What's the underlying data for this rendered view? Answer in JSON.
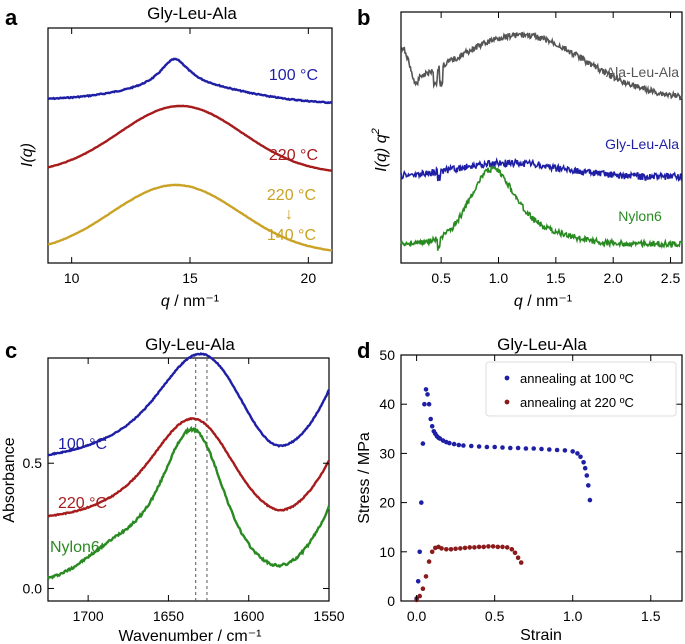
{
  "figure": {
    "panels": [
      "a",
      "b",
      "c",
      "d"
    ]
  },
  "chart_data": [
    {
      "id": "a",
      "type": "line",
      "title": "Gly-Leu-Ala",
      "xlabel_var": "q",
      "xlabel_unit": " / nm⁻¹",
      "ylabel_var": "I(q)",
      "xlim": [
        9,
        21
      ],
      "xticks": [
        10,
        15,
        20
      ],
      "series": [
        {
          "name": "100 °C",
          "label_lines": [
            "100 °C"
          ],
          "color": "#1f1fa6"
        },
        {
          "name": "220 °C",
          "label_lines": [
            "220 °C"
          ],
          "color": "#a61b1b"
        },
        {
          "name": "220 °C → 140 °C",
          "label_lines": [
            "220 °C",
            "↓",
            "140 °C"
          ],
          "color": "#c9a226"
        }
      ]
    },
    {
      "id": "b",
      "type": "line",
      "title": "",
      "xlabel_var": "q",
      "xlabel_unit": " / nm⁻¹",
      "ylabel_var": "I(q) q",
      "ylabel_sup": "2",
      "xlim": [
        0.15,
        2.6
      ],
      "xticks": [
        0.5,
        1.0,
        1.5,
        2.0,
        2.5
      ],
      "xtick_labels": [
        "0.5",
        "1.0",
        "1.5",
        "2.0",
        "2.5"
      ],
      "series": [
        {
          "name": "Ala-Leu-Ala",
          "color": "#555555"
        },
        {
          "name": "Gly-Leu-Ala",
          "color": "#1f1fa6"
        },
        {
          "name": "Nylon6",
          "color": "#2a8a22"
        }
      ]
    },
    {
      "id": "c",
      "type": "line",
      "title": "Gly-Leu-Ala",
      "xlabel": "Wavenumber / cm⁻¹",
      "ylabel": "Absorbance",
      "xlim": [
        1725,
        1550
      ],
      "xticks": [
        1700,
        1650,
        1600,
        1550
      ],
      "ylim": [
        -0.05,
        0.92
      ],
      "yticks": [
        0.0,
        0.5
      ],
      "ytick_labels": [
        "0.0",
        "0.5"
      ],
      "reference_lines": [
        1633,
        1626
      ],
      "series": [
        {
          "name": "100 °C",
          "color": "#1f1fa6"
        },
        {
          "name": "220 °C",
          "color": "#a61b1b"
        },
        {
          "name": "Nylon6",
          "color": "#2a8a22"
        }
      ]
    },
    {
      "id": "d",
      "type": "scatter",
      "title": "Gly-Leu-Ala",
      "xlabel": "Strain",
      "ylabel": "Stress / MPa",
      "xlim": [
        -0.1,
        1.7
      ],
      "ylim": [
        0,
        50
      ],
      "xticks": [
        0.0,
        0.5,
        1.0,
        1.5
      ],
      "xtick_labels": [
        "0.0",
        "0.5",
        "1.0",
        "1.5"
      ],
      "yticks": [
        0,
        10,
        20,
        30,
        40,
        50
      ],
      "legend_position": "top-right",
      "series": [
        {
          "name": "annealing at 100 ºC",
          "color": "#1f1fa6",
          "x": [
            0.0,
            0.01,
            0.02,
            0.03,
            0.04,
            0.05,
            0.06,
            0.07,
            0.08,
            0.09,
            0.1,
            0.11,
            0.12,
            0.13,
            0.14,
            0.15,
            0.17,
            0.19,
            0.21,
            0.24,
            0.27,
            0.3,
            0.35,
            0.4,
            0.45,
            0.5,
            0.55,
            0.6,
            0.65,
            0.7,
            0.75,
            0.8,
            0.85,
            0.9,
            0.95,
            1.0,
            1.03,
            1.05,
            1.07,
            1.08,
            1.09,
            1.1,
            1.11
          ],
          "y": [
            0.5,
            4,
            10,
            20,
            32,
            40,
            43,
            42,
            40,
            37,
            35.5,
            34.5,
            34,
            33.5,
            33.2,
            33,
            32.6,
            32.3,
            32.1,
            31.9,
            31.7,
            31.6,
            31.5,
            31.4,
            31.3,
            31.3,
            31.2,
            31.1,
            31.1,
            31.0,
            31.0,
            30.9,
            30.8,
            30.7,
            30.6,
            30.4,
            30.0,
            29.3,
            28.2,
            27.0,
            25.5,
            23.5,
            20.5
          ]
        },
        {
          "name": "annealing at 220 ºC",
          "color": "#8b1a1a",
          "x": [
            0.0,
            0.02,
            0.04,
            0.06,
            0.08,
            0.1,
            0.12,
            0.14,
            0.16,
            0.19,
            0.22,
            0.25,
            0.28,
            0.31,
            0.34,
            0.37,
            0.4,
            0.43,
            0.46,
            0.49,
            0.52,
            0.55,
            0.58,
            0.61,
            0.63,
            0.65,
            0.67
          ],
          "y": [
            0.2,
            1,
            2.5,
            5,
            8,
            10,
            10.8,
            11,
            10.7,
            10.5,
            10.5,
            10.6,
            10.7,
            10.8,
            10.9,
            10.9,
            11.0,
            11.0,
            11.1,
            11.1,
            11.0,
            11.0,
            10.9,
            10.5,
            9.8,
            8.8,
            7.8
          ]
        }
      ]
    }
  ]
}
